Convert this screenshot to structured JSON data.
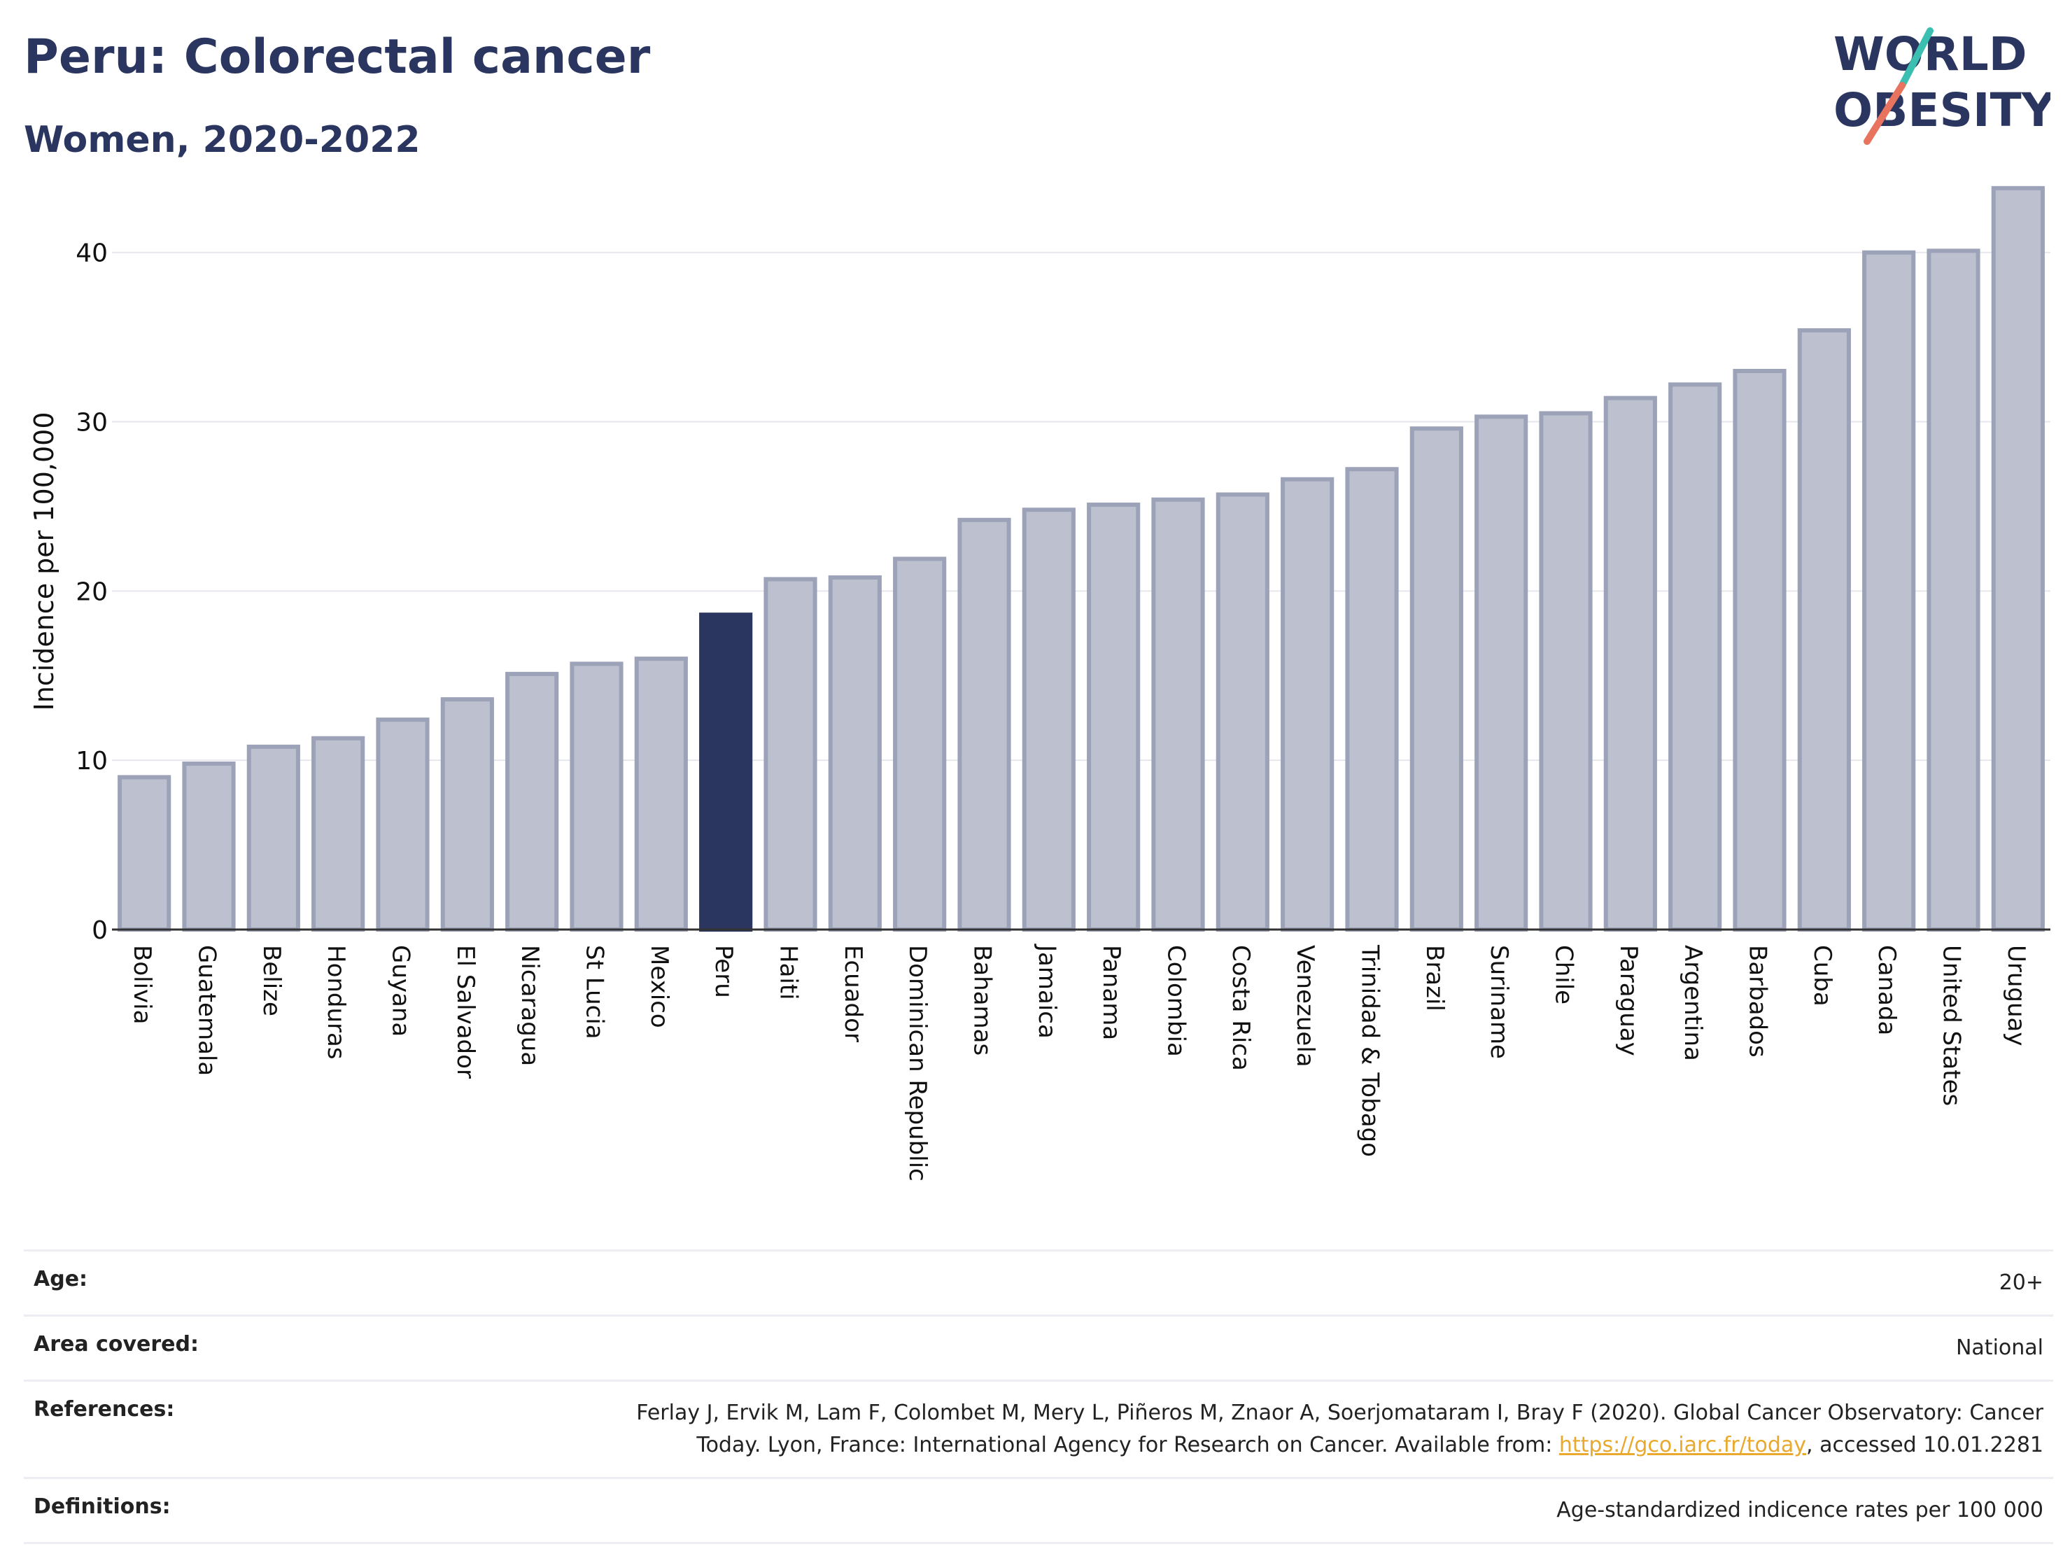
{
  "header": {
    "title": "Peru: Colorectal cancer",
    "subtitle": "Women, 2020-2022"
  },
  "logo": {
    "line1": "WORLD",
    "line2": "OBESITY",
    "accent_colors": [
      "#3bbfb0",
      "#e8735f"
    ]
  },
  "chart_data": {
    "type": "bar",
    "ylabel": "Incidence per 100,000",
    "ylim": [
      0,
      44
    ],
    "yticks": [
      0,
      10,
      20,
      30,
      40
    ],
    "grid": true,
    "highlight": "Peru",
    "colors": {
      "bar": "#bcc0cf",
      "bar_stroke": "#9ca2b8",
      "highlight": "#2a3560"
    },
    "categories": [
      "Bolivia",
      "Guatemala",
      "Belize",
      "Honduras",
      "Guyana",
      "El Salvador",
      "Nicaragua",
      "St Lucia",
      "Mexico",
      "Peru",
      "Haiti",
      "Ecuador",
      "Dominican Republic",
      "Bahamas",
      "Jamaica",
      "Panama",
      "Colombia",
      "Costa Rica",
      "Venezuela",
      "Trinidad & Tobago",
      "Brazil",
      "Suriname",
      "Chile",
      "Paraguay",
      "Argentina",
      "Barbados",
      "Cuba",
      "Canada",
      "United States",
      "Uruguay"
    ],
    "values": [
      9.0,
      9.8,
      10.8,
      11.3,
      12.4,
      13.6,
      15.1,
      15.7,
      16.0,
      18.6,
      20.7,
      20.8,
      21.9,
      24.2,
      24.8,
      25.1,
      25.4,
      25.7,
      26.6,
      27.2,
      29.6,
      30.3,
      30.5,
      31.4,
      32.2,
      33.0,
      35.4,
      40.0,
      40.1,
      43.8
    ]
  },
  "meta": {
    "age_label": "Age:",
    "age_value": "20+",
    "area_label": "Area covered:",
    "area_value": "National",
    "references_label": "References:",
    "references_text_1": "Ferlay J, Ervik M, Lam F, Colombet M, Mery L, Piñeros M, Znaor A, Soerjomataram I, Bray F (2020). Global Cancer Observatory: Cancer",
    "references_text_2": "Today. Lyon, France: International Agency for Research on Cancer. Available from: ",
    "references_link": "https://gco.iarc.fr/today",
    "references_text_3": ", accessed 10.01.2281",
    "definitions_label": "Definitions:",
    "definitions_value": "Age-standardized indicence rates per 100 000"
  }
}
